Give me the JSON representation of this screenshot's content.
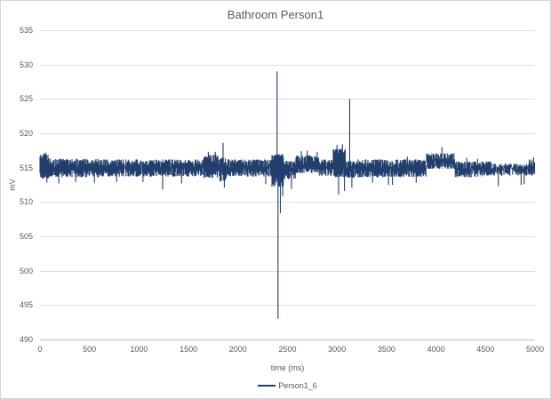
{
  "chart": {
    "colors": {
      "series_line": "#223e6c",
      "label_text": "#595959",
      "gridline": "#dddddd",
      "axis_line": "#c0c0c0",
      "background": "#ffffff",
      "frame_border": "#d6d6d6"
    }
  },
  "chart_data": {
    "type": "line",
    "title": "Bathroom Person1",
    "xlabel": "time (ms)",
    "ylabel": "mV",
    "xlim": [
      0,
      5000
    ],
    "ylim": [
      490,
      535
    ],
    "x_ticks": [
      0,
      500,
      1000,
      1500,
      2000,
      2500,
      3000,
      3500,
      4000,
      4500,
      5000
    ],
    "y_ticks": [
      490,
      495,
      500,
      505,
      510,
      515,
      520,
      525,
      530,
      535
    ],
    "grid": "horizontal-only",
    "legend_position": "bottom-center",
    "series": [
      {
        "name": "Person1_6",
        "color": "#223e6c",
        "description": "dense noisy signal oscillating around 514-516 mV with sharp transient spikes",
        "baseline_mV": 515,
        "noise_envelope": [
          [
            0,
            90,
            513.4,
            517.0
          ],
          [
            90,
            600,
            513.6,
            516.3
          ],
          [
            600,
            1230,
            513.7,
            516.2
          ],
          [
            1230,
            1650,
            513.7,
            516.2
          ],
          [
            1650,
            1810,
            513.5,
            516.9
          ],
          [
            1810,
            1880,
            513.0,
            516.5
          ],
          [
            1880,
            2340,
            513.7,
            516.2
          ],
          [
            2340,
            2460,
            512.2,
            517.0
          ],
          [
            2460,
            2580,
            513.3,
            516.0
          ],
          [
            2580,
            2820,
            514.2,
            516.8
          ],
          [
            2820,
            2960,
            513.8,
            516.2
          ],
          [
            2960,
            3090,
            513.6,
            517.8
          ],
          [
            3090,
            3200,
            513.5,
            516.0
          ],
          [
            3200,
            3900,
            513.6,
            516.2
          ],
          [
            3900,
            4190,
            514.8,
            517.1
          ],
          [
            4190,
            4560,
            513.6,
            515.9
          ],
          [
            4560,
            4940,
            513.8,
            515.6
          ],
          [
            4940,
            5000,
            513.8,
            516.2
          ]
        ],
        "spikes": [
          [
            55,
            517.2
          ],
          [
            70,
            512.8
          ],
          [
            190,
            512.7
          ],
          [
            360,
            512.9
          ],
          [
            550,
            512.8
          ],
          [
            775,
            512.9
          ],
          [
            1040,
            512.9
          ],
          [
            1239,
            511.8
          ],
          [
            1430,
            512.7
          ],
          [
            1700,
            517.3
          ],
          [
            1770,
            517.3
          ],
          [
            1849,
            518.6
          ],
          [
            1862,
            512.1
          ],
          [
            2280,
            512.6
          ],
          [
            2395,
            529.0
          ],
          [
            2404,
            493.0
          ],
          [
            2428,
            508.4
          ],
          [
            2452,
            510.9
          ],
          [
            2540,
            511.9
          ],
          [
            2640,
            517.4
          ],
          [
            2700,
            517.5
          ],
          [
            2800,
            517.3
          ],
          [
            3000,
            518.3
          ],
          [
            3016,
            511.1
          ],
          [
            3055,
            518.4
          ],
          [
            3075,
            511.6
          ],
          [
            3128,
            525.0
          ],
          [
            3150,
            512.1
          ],
          [
            3360,
            512.8
          ],
          [
            3520,
            512.5
          ],
          [
            3560,
            512.5
          ],
          [
            3710,
            516.6
          ],
          [
            3800,
            512.8
          ],
          [
            4060,
            518.0
          ],
          [
            4310,
            516.4
          ],
          [
            4420,
            516.3
          ],
          [
            4630,
            512.3
          ],
          [
            4860,
            512.5
          ],
          [
            4890,
            512.6
          ],
          [
            4985,
            516.5
          ]
        ]
      }
    ]
  }
}
